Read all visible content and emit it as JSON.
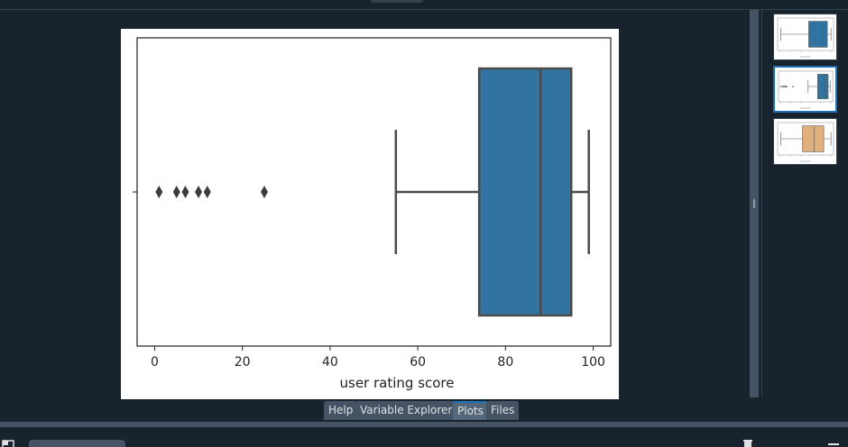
{
  "tabs": [
    {
      "label": "Help",
      "active": false
    },
    {
      "label": "Variable Explorer",
      "active": false
    },
    {
      "label": "Plots",
      "active": true
    },
    {
      "label": "Files",
      "active": false
    }
  ],
  "colors": {
    "box_blue": "#3274a1",
    "box_tan": "#e1b07c",
    "selection": "#1e6fb5",
    "panel_bg": "#19232d",
    "tab_bg": "#455364"
  },
  "icons": {
    "left_panel": "panel-toggle-icon",
    "trash": "trash-icon",
    "stop": "stop-icon",
    "menu": "hamburger-menu-icon"
  },
  "chart_data": {
    "type": "box",
    "orientation": "horizontal",
    "xlabel": "user rating score",
    "xlim": [
      -4,
      104
    ],
    "xticks": [
      0,
      20,
      40,
      60,
      80,
      100
    ],
    "grid": false,
    "color": "#3274a1",
    "box": {
      "whisker_low": 55,
      "q1": 74,
      "median": 88,
      "q3": 95,
      "whisker_high": 99
    },
    "outliers": [
      1,
      5,
      7,
      10,
      12,
      25
    ]
  },
  "thumbnails": [
    {
      "color": "#3274a1",
      "selected": false,
      "box": {
        "whisker_low": 2,
        "q1": 56,
        "median": 82,
        "q3": 92,
        "whisker_high": 99
      },
      "outliers": []
    },
    {
      "color": "#3274a1",
      "selected": true,
      "box": {
        "whisker_low": 55,
        "q1": 74,
        "median": 88,
        "q3": 95,
        "whisker_high": 99
      },
      "outliers": [
        1,
        5,
        7,
        10,
        12,
        25
      ]
    },
    {
      "color": "#e1b07c",
      "selected": false,
      "box": {
        "whisker_low": 2,
        "q1": 44,
        "median": 67,
        "q3": 85,
        "whisker_high": 99
      },
      "outliers": []
    }
  ]
}
